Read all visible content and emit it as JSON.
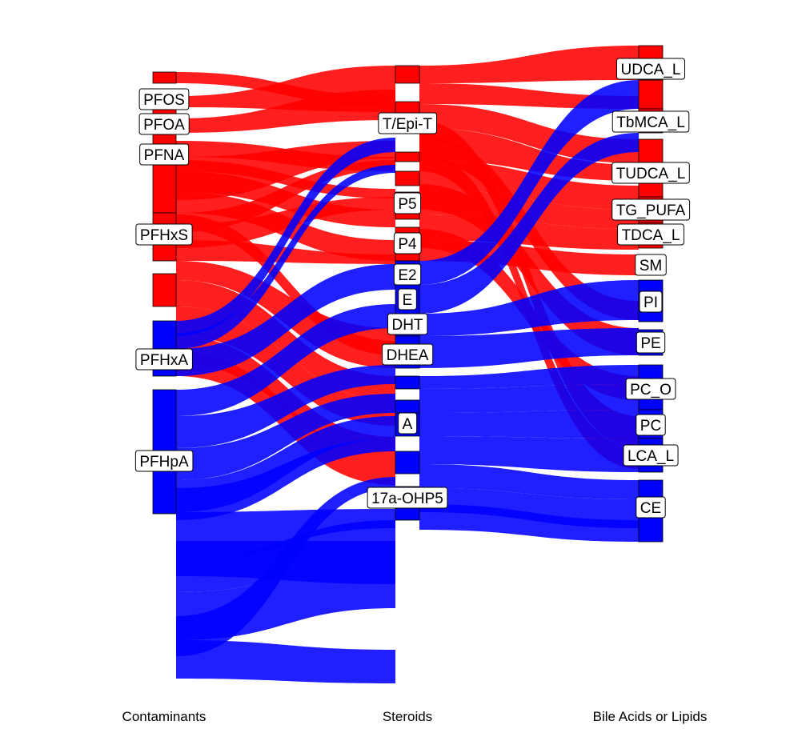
{
  "chart_data": {
    "type": "sankey",
    "colors": {
      "positive": "#ff0000",
      "negative": "#0000ff"
    },
    "axes": [
      "Contaminants",
      "Steroids",
      "Bile Acids or Lipids"
    ],
    "nodes": {
      "contaminants": [
        "PFOS",
        "PFOA",
        "PFNA",
        "PFHxS",
        "PFHxA",
        "PFHpA"
      ],
      "steroids": [
        "T/Epi-T",
        "P5",
        "P4",
        "E2",
        "E",
        "DHT",
        "DHEA",
        "A",
        "17a-OHP5"
      ],
      "outcomes": [
        "UDCA_L",
        "TbMCA_L",
        "TUDCA_L",
        "TG_PUFA",
        "TDCA_L",
        "SM",
        "PI",
        "PE",
        "PC_O",
        "PC",
        "LCA_L",
        "CE"
      ]
    }
  }
}
